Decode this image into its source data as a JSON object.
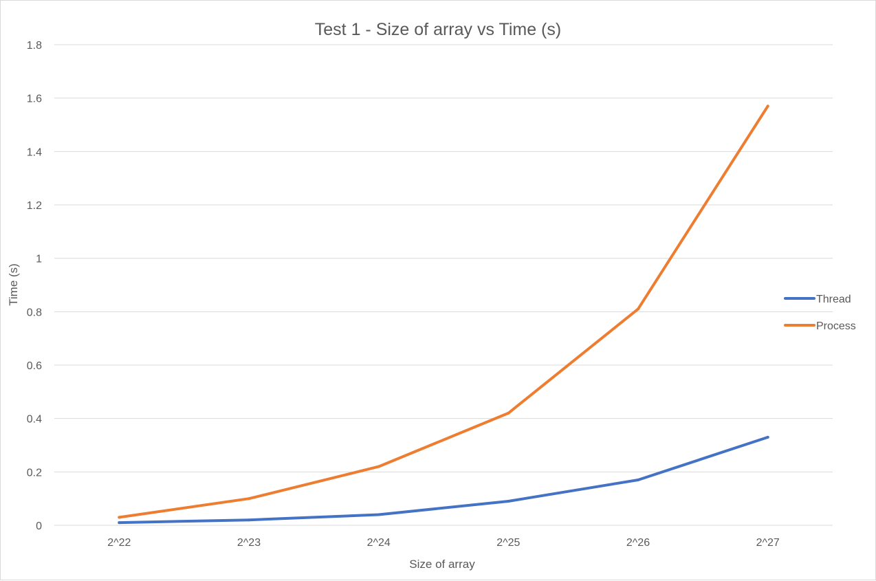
{
  "chart_data": {
    "type": "line",
    "title": "Test 1 - Size of array vs Time (s)",
    "xlabel": "Size of array",
    "ylabel": "Time (s)",
    "categories": [
      "2^22",
      "2^23",
      "2^24",
      "2^25",
      "2^26",
      "2^27"
    ],
    "ylim": [
      0,
      1.8
    ],
    "yticks": [
      "0",
      "0.2",
      "0.4",
      "0.6",
      "0.8",
      "1",
      "1.2",
      "1.4",
      "1.6",
      "1.8"
    ],
    "grid": true,
    "legend_position": "right",
    "series": [
      {
        "name": "Thread",
        "color": "#4472c4",
        "values": [
          0.01,
          0.02,
          0.04,
          0.09,
          0.17,
          0.33
        ]
      },
      {
        "name": "Process",
        "color": "#ed7d31",
        "values": [
          0.03,
          0.1,
          0.22,
          0.42,
          0.81,
          1.57
        ]
      }
    ]
  }
}
